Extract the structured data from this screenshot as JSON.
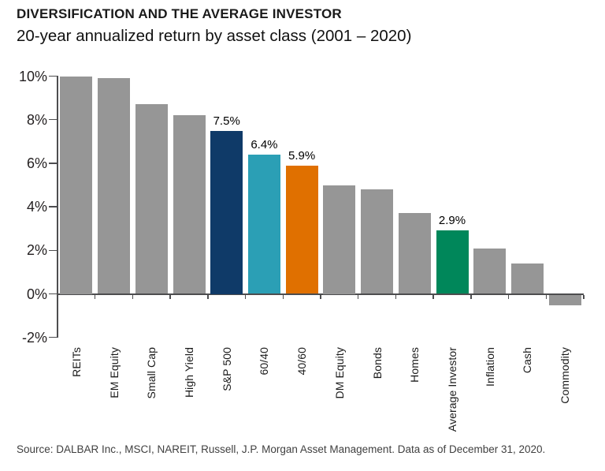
{
  "chart_data": {
    "type": "bar",
    "title": "DIVERSIFICATION AND THE AVERAGE INVESTOR",
    "subtitle": "20-year annualized return by asset class (2001 – 2020)",
    "categories": [
      "REITs",
      "EM Equity",
      "Small Cap",
      "High Yield",
      "S&P 500",
      "60/40",
      "40/60",
      "DM Equity",
      "Bonds",
      "Homes",
      "Average Investor",
      "Inflation",
      "Cash",
      "Commodity"
    ],
    "values": [
      10.0,
      9.9,
      8.7,
      8.2,
      7.5,
      6.4,
      5.9,
      5.0,
      4.8,
      3.7,
      2.9,
      2.1,
      1.4,
      -0.5
    ],
    "bar_value_labels": [
      "",
      "",
      "",
      "",
      "7.5%",
      "6.4%",
      "5.9%",
      "",
      "",
      "",
      "2.9%",
      "",
      "",
      ""
    ],
    "bar_colors": [
      "#969696",
      "#969696",
      "#969696",
      "#969696",
      "#0f3a68",
      "#2b9fb5",
      "#e07000",
      "#969696",
      "#969696",
      "#969696",
      "#00875a",
      "#969696",
      "#969696",
      "#969696"
    ],
    "y_tick_values": [
      10,
      8,
      6,
      4,
      2,
      0,
      -2
    ],
    "y_tick_labels": [
      "10%",
      "8%",
      "6%",
      "4%",
      "2%",
      "0%",
      "-2%"
    ],
    "ylim": [
      -2,
      10
    ],
    "grid": false,
    "legend": null,
    "colors": {
      "default_gray": "#969696",
      "sp500_navy": "#0f3a68",
      "mix6040_teal": "#2b9fb5",
      "mix4060_orange": "#e07000",
      "average_investor_green": "#00875a",
      "axis": "#4d4d4f"
    },
    "source": "Source: DALBAR Inc., MSCI, NAREIT, Russell, J.P. Morgan Asset Management. Data as of December 31, 2020."
  }
}
